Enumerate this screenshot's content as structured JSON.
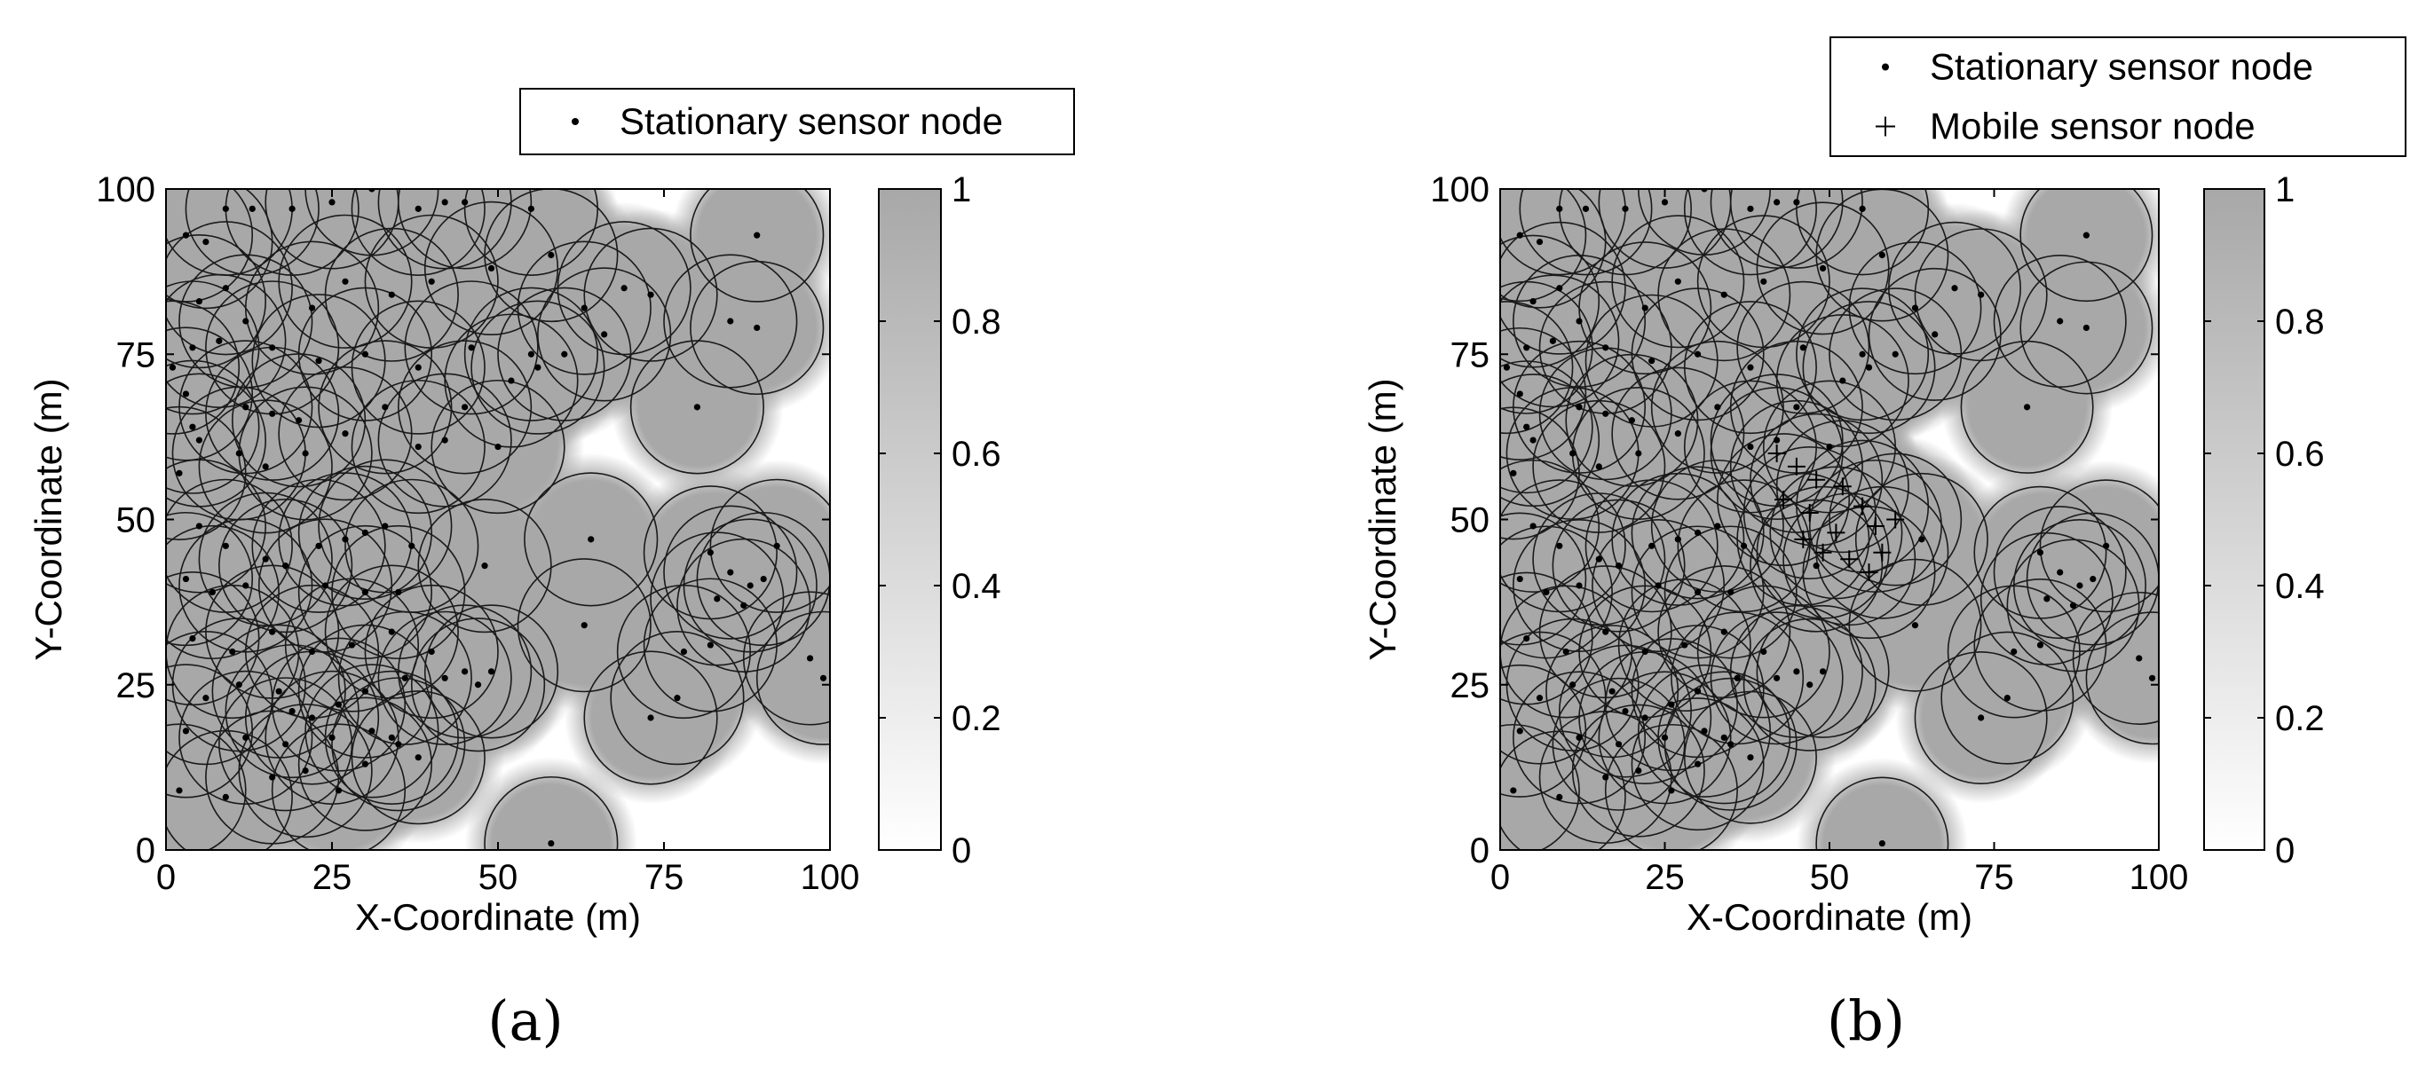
{
  "chart_data": [
    {
      "panel_label": "(a)",
      "type": "scatter",
      "xlabel": "X-Coordinate (m)",
      "ylabel": "Y-Coordinate (m)",
      "xlim": [
        0,
        100
      ],
      "ylim": [
        0,
        100
      ],
      "xticks": [
        "0",
        "25",
        "50",
        "75",
        "100"
      ],
      "yticks": [
        "0",
        "25",
        "50",
        "75",
        "100"
      ],
      "sensing_radius": 10,
      "legend_position": "top-right",
      "colorbar": {
        "min": 0,
        "max": 1,
        "ticks": [
          "0",
          "0.2",
          "0.4",
          "0.6",
          "0.8",
          "1"
        ]
      },
      "series": [
        {
          "name": "Stationary sensor node",
          "marker": "dot",
          "points": [
            [
              3,
              93
            ],
            [
              6,
              92
            ],
            [
              9,
              97
            ],
            [
              13,
              97
            ],
            [
              19,
              97
            ],
            [
              25,
              98
            ],
            [
              31,
              100
            ],
            [
              38,
              97
            ],
            [
              42,
              98
            ],
            [
              45,
              98
            ],
            [
              55,
              97
            ],
            [
              58,
              90
            ],
            [
              89,
              93
            ],
            [
              5,
              83
            ],
            [
              9,
              85
            ],
            [
              12,
              80
            ],
            [
              22,
              82
            ],
            [
              27,
              86
            ],
            [
              34,
              84
            ],
            [
              40,
              86
            ],
            [
              49,
              88
            ],
            [
              63,
              82
            ],
            [
              66,
              78
            ],
            [
              69,
              85
            ],
            [
              73,
              84
            ],
            [
              85,
              80
            ],
            [
              89,
              79
            ],
            [
              1,
              73
            ],
            [
              4,
              76
            ],
            [
              8,
              77
            ],
            [
              16,
              76
            ],
            [
              23,
              74
            ],
            [
              30,
              75
            ],
            [
              38,
              73
            ],
            [
              46,
              76
            ],
            [
              55,
              75
            ],
            [
              60,
              75
            ],
            [
              3,
              69
            ],
            [
              4,
              64
            ],
            [
              5,
              62
            ],
            [
              12,
              67
            ],
            [
              16,
              66
            ],
            [
              20,
              65
            ],
            [
              27,
              63
            ],
            [
              33,
              67
            ],
            [
              45,
              67
            ],
            [
              52,
              71
            ],
            [
              56,
              73
            ],
            [
              80,
              67
            ],
            [
              2,
              57
            ],
            [
              11,
              60
            ],
            [
              15,
              58
            ],
            [
              21,
              60
            ],
            [
              38,
              61
            ],
            [
              42,
              62
            ],
            [
              50,
              61
            ],
            [
              5,
              49
            ],
            [
              9,
              46
            ],
            [
              15,
              44
            ],
            [
              23,
              46
            ],
            [
              27,
              47
            ],
            [
              30,
              48
            ],
            [
              33,
              49
            ],
            [
              37,
              46
            ],
            [
              64,
              47
            ],
            [
              82,
              45
            ],
            [
              85,
              42
            ],
            [
              88,
              40
            ],
            [
              92,
              46
            ],
            [
              3,
              41
            ],
            [
              7,
              39
            ],
            [
              12,
              40
            ],
            [
              18,
              43
            ],
            [
              24,
              40
            ],
            [
              30,
              39
            ],
            [
              35,
              39
            ],
            [
              48,
              43
            ],
            [
              83,
              38
            ],
            [
              87,
              37
            ],
            [
              90,
              41
            ],
            [
              4,
              32
            ],
            [
              10,
              30
            ],
            [
              16,
              33
            ],
            [
              22,
              30
            ],
            [
              28,
              31
            ],
            [
              34,
              33
            ],
            [
              40,
              30
            ],
            [
              45,
              27
            ],
            [
              49,
              27
            ],
            [
              63,
              34
            ],
            [
              78,
              30
            ],
            [
              82,
              31
            ],
            [
              97,
              29
            ],
            [
              6,
              23
            ],
            [
              11,
              25
            ],
            [
              17,
              24
            ],
            [
              19,
              21
            ],
            [
              22,
              20
            ],
            [
              26,
              22
            ],
            [
              30,
              24
            ],
            [
              36,
              26
            ],
            [
              42,
              26
            ],
            [
              47,
              25
            ],
            [
              73,
              20
            ],
            [
              77,
              23
            ],
            [
              99,
              26
            ],
            [
              3,
              18
            ],
            [
              12,
              17
            ],
            [
              18,
              16
            ],
            [
              25,
              17
            ],
            [
              31,
              18
            ],
            [
              34,
              17
            ],
            [
              38,
              14
            ],
            [
              2,
              9
            ],
            [
              9,
              8
            ],
            [
              16,
              11
            ],
            [
              21,
              12
            ],
            [
              26,
              9
            ],
            [
              30,
              13
            ],
            [
              35,
              16
            ],
            [
              58,
              1
            ]
          ]
        }
      ]
    },
    {
      "panel_label": "(b)",
      "type": "scatter",
      "xlabel": "X-Coordinate (m)",
      "ylabel": "Y-Coordinate (m)",
      "xlim": [
        0,
        100
      ],
      "ylim": [
        0,
        100
      ],
      "xticks": [
        "0",
        "25",
        "50",
        "75",
        "100"
      ],
      "yticks": [
        "0",
        "25",
        "50",
        "75",
        "100"
      ],
      "sensing_radius": 10,
      "legend_position": "top-right",
      "colorbar": {
        "min": 0,
        "max": 1,
        "ticks": [
          "0",
          "0.2",
          "0.4",
          "0.6",
          "0.8",
          "1"
        ]
      },
      "series": [
        {
          "name": "Stationary sensor node",
          "marker": "dot",
          "points": [
            [
              3,
              93
            ],
            [
              6,
              92
            ],
            [
              9,
              97
            ],
            [
              13,
              97
            ],
            [
              19,
              97
            ],
            [
              25,
              98
            ],
            [
              31,
              100
            ],
            [
              38,
              97
            ],
            [
              42,
              98
            ],
            [
              45,
              98
            ],
            [
              55,
              97
            ],
            [
              58,
              90
            ],
            [
              89,
              93
            ],
            [
              5,
              83
            ],
            [
              9,
              85
            ],
            [
              12,
              80
            ],
            [
              22,
              82
            ],
            [
              27,
              86
            ],
            [
              34,
              84
            ],
            [
              40,
              86
            ],
            [
              49,
              88
            ],
            [
              63,
              82
            ],
            [
              66,
              78
            ],
            [
              69,
              85
            ],
            [
              73,
              84
            ],
            [
              85,
              80
            ],
            [
              89,
              79
            ],
            [
              1,
              73
            ],
            [
              4,
              76
            ],
            [
              8,
              77
            ],
            [
              16,
              76
            ],
            [
              23,
              74
            ],
            [
              30,
              75
            ],
            [
              38,
              73
            ],
            [
              46,
              76
            ],
            [
              55,
              75
            ],
            [
              60,
              75
            ],
            [
              3,
              69
            ],
            [
              4,
              64
            ],
            [
              5,
              62
            ],
            [
              12,
              67
            ],
            [
              16,
              66
            ],
            [
              20,
              65
            ],
            [
              27,
              63
            ],
            [
              33,
              67
            ],
            [
              45,
              67
            ],
            [
              52,
              71
            ],
            [
              56,
              73
            ],
            [
              80,
              67
            ],
            [
              2,
              57
            ],
            [
              11,
              60
            ],
            [
              15,
              58
            ],
            [
              21,
              60
            ],
            [
              38,
              61
            ],
            [
              42,
              62
            ],
            [
              50,
              61
            ],
            [
              5,
              49
            ],
            [
              9,
              46
            ],
            [
              15,
              44
            ],
            [
              23,
              46
            ],
            [
              27,
              47
            ],
            [
              30,
              48
            ],
            [
              33,
              49
            ],
            [
              37,
              46
            ],
            [
              64,
              47
            ],
            [
              82,
              45
            ],
            [
              85,
              42
            ],
            [
              88,
              40
            ],
            [
              92,
              46
            ],
            [
              3,
              41
            ],
            [
              7,
              39
            ],
            [
              12,
              40
            ],
            [
              18,
              43
            ],
            [
              24,
              40
            ],
            [
              30,
              39
            ],
            [
              35,
              39
            ],
            [
              48,
              43
            ],
            [
              83,
              38
            ],
            [
              87,
              37
            ],
            [
              90,
              41
            ],
            [
              4,
              32
            ],
            [
              10,
              30
            ],
            [
              16,
              33
            ],
            [
              22,
              30
            ],
            [
              28,
              31
            ],
            [
              34,
              33
            ],
            [
              40,
              30
            ],
            [
              45,
              27
            ],
            [
              49,
              27
            ],
            [
              63,
              34
            ],
            [
              78,
              30
            ],
            [
              82,
              31
            ],
            [
              97,
              29
            ],
            [
              6,
              23
            ],
            [
              11,
              25
            ],
            [
              17,
              24
            ],
            [
              19,
              21
            ],
            [
              22,
              20
            ],
            [
              26,
              22
            ],
            [
              30,
              24
            ],
            [
              36,
              26
            ],
            [
              42,
              26
            ],
            [
              47,
              25
            ],
            [
              73,
              20
            ],
            [
              77,
              23
            ],
            [
              99,
              26
            ],
            [
              3,
              18
            ],
            [
              12,
              17
            ],
            [
              18,
              16
            ],
            [
              25,
              17
            ],
            [
              31,
              18
            ],
            [
              34,
              17
            ],
            [
              38,
              14
            ],
            [
              2,
              9
            ],
            [
              9,
              8
            ],
            [
              16,
              11
            ],
            [
              21,
              12
            ],
            [
              26,
              9
            ],
            [
              30,
              13
            ],
            [
              35,
              16
            ],
            [
              58,
              1
            ]
          ]
        },
        {
          "name": "Mobile sensor node",
          "marker": "plus",
          "points": [
            [
              42,
              60
            ],
            [
              45,
              58
            ],
            [
              48,
              56
            ],
            [
              43,
              53
            ],
            [
              47,
              51
            ],
            [
              52,
              55
            ],
            [
              55,
              52
            ],
            [
              51,
              48
            ],
            [
              49,
              45
            ],
            [
              53,
              44
            ],
            [
              57,
              49
            ],
            [
              58,
              45
            ],
            [
              60,
              50
            ],
            [
              56,
              42
            ],
            [
              46,
              47
            ]
          ]
        }
      ]
    }
  ]
}
